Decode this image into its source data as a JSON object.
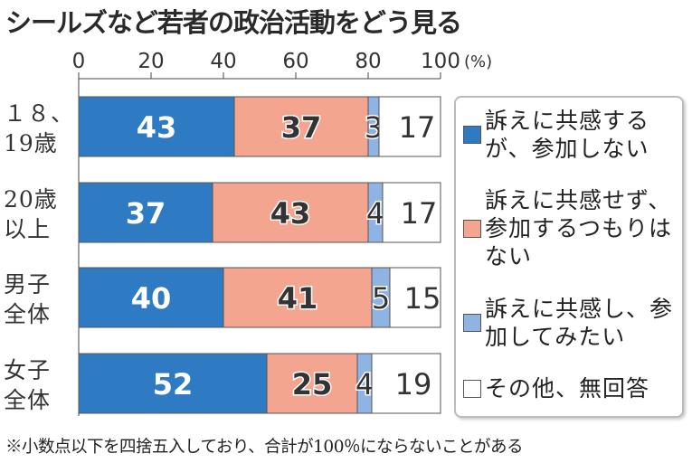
{
  "chart_data": {
    "type": "bar",
    "orientation": "horizontal-stacked",
    "title": "シールズなど若者の政治活動をどう見る",
    "x_ticks": [
      "0",
      "20",
      "40",
      "60",
      "80",
      "100"
    ],
    "x_unit": "(%)",
    "xlim": [
      0,
      100
    ],
    "categories": [
      {
        "line1": "１８、",
        "line2": "19歳"
      },
      {
        "line1": "20歳",
        "line2": "以上"
      },
      {
        "line1": "男子",
        "line2": "全体"
      },
      {
        "line1": "女子",
        "line2": "全体"
      }
    ],
    "series": [
      {
        "name": "訴えに共感するが、参加しない",
        "color": "#2e7bc4",
        "values": [
          43,
          37,
          40,
          52
        ]
      },
      {
        "name": "訴えに共感せず、参加するつもりはない",
        "color": "#f4a590",
        "values": [
          37,
          43,
          41,
          25
        ]
      },
      {
        "name": "訴えに共感し、参加してみたい",
        "color": "#8fb4e3",
        "values": [
          3,
          4,
          5,
          4
        ]
      },
      {
        "name": "その他、無回答",
        "color": "#ffffff",
        "values": [
          17,
          17,
          15,
          19
        ]
      }
    ],
    "legend_placement": "right",
    "footnote": "※小数点以下を四捨五入しており、合計が100％にならないことがある"
  }
}
